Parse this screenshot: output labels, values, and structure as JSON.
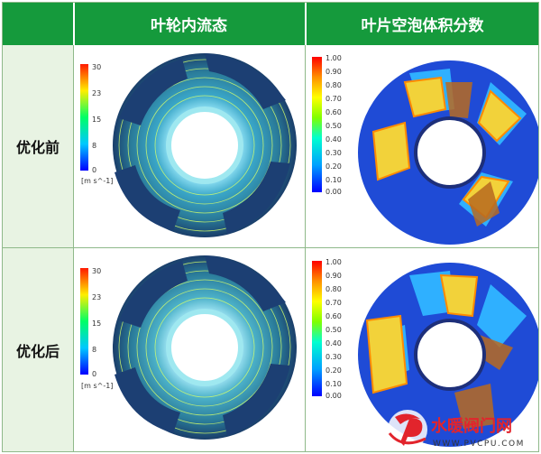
{
  "header": {
    "col1": "叶轮内流态",
    "col2": "叶片空泡体积分数"
  },
  "rows": [
    {
      "label": "优化前"
    },
    {
      "label": "优化后"
    }
  ],
  "velocity_scale": {
    "ticks": [
      "30",
      "23",
      "15",
      "8",
      "0"
    ],
    "unit": "[m s^-1]"
  },
  "vof_scale": {
    "ticks": [
      "1.00",
      "0.90",
      "0.80",
      "0.70",
      "0.60",
      "0.50",
      "0.40",
      "0.30",
      "0.20",
      "0.10",
      "0.00"
    ]
  },
  "watermark": {
    "site_name": "水暖阀门网",
    "site_url": "WWW.PVCPU.COM"
  },
  "colors": {
    "header_bg": "#159a3c",
    "label_bg": "#e8f3e3",
    "border": "#8fb98a"
  }
}
